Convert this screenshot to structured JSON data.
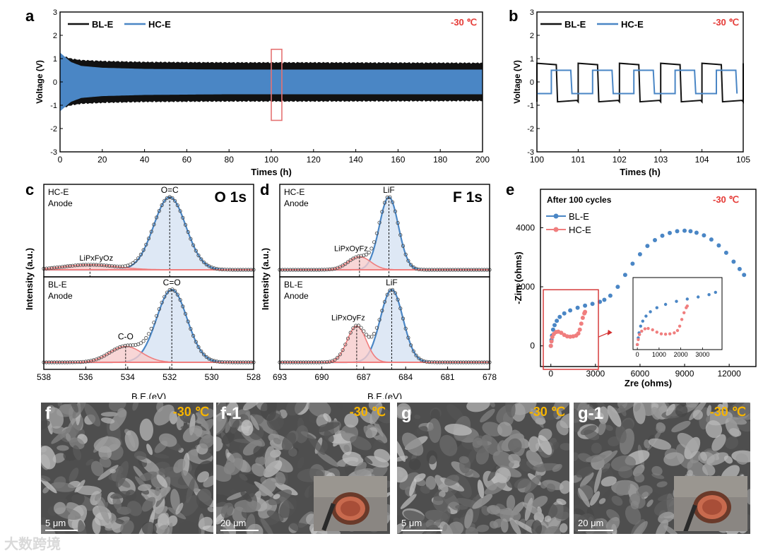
{
  "colors": {
    "bl": "#111111",
    "hc": "#4a86c5",
    "hc_eis": "#f07e7e",
    "temp": "#e53935",
    "sem_temp": "#f6b400",
    "fill_blue": "#d6e2f2",
    "fill_red": "#f6cccc"
  },
  "panels": {
    "a": {
      "label": "a",
      "legend": [
        "BL-E",
        "HC-E"
      ],
      "temp": "-30 ℃",
      "xlabel": "Times (h)",
      "ylabel": "Voltage (V)"
    },
    "b": {
      "label": "b",
      "legend": [
        "BL-E",
        "HC-E"
      ],
      "temp": "-30 ℃",
      "xlabel": "Times (h)",
      "ylabel": "Voltage (V)"
    },
    "c": {
      "label": "c",
      "title": "O 1s",
      "top_sample": "HC-E",
      "bottom_sample": "BL-E",
      "electrode": "Anode",
      "peak_oc": "O=C",
      "peak_co": "C=O",
      "peak_lipfo": "LiPxFyOz",
      "peak_cto": "C-O",
      "xlabel": "B.E.(eV)"
    },
    "d": {
      "label": "d",
      "title": "F 1s",
      "top_sample": "HC-E",
      "bottom_sample": "BL-E",
      "electrode": "Anode",
      "peak_lif": "LiF",
      "peak_lipof": "LiPxOyFz",
      "xlabel": "B.E.(eV)"
    },
    "shared_ylabel": "Intensity (a.u.)",
    "e": {
      "label": "e",
      "note": "After 100 cycles",
      "temp": "-30 ℃",
      "legend": [
        "BL-E",
        "HC-E"
      ],
      "xlabel": "Zre (ohms)",
      "ylabel": "-Zim (ohms)"
    }
  },
  "sem": [
    {
      "label": "f",
      "temp": "-30 ℃",
      "scale": "5 μm",
      "inset": false
    },
    {
      "label": "f-1",
      "temp": "-30 ℃",
      "scale": "20 μm",
      "inset": true
    },
    {
      "label": "g",
      "temp": "-30 ℃",
      "scale": "5 μm",
      "inset": false
    },
    {
      "label": "g-1",
      "temp": "-30 ℃",
      "scale": "20 μm",
      "inset": true
    }
  ],
  "watermark": "大数跨境",
  "chart_data": [
    {
      "panel": "a",
      "type": "line",
      "xlim": [
        0,
        200
      ],
      "ylim": [
        -3,
        3
      ],
      "xticks": [
        0,
        20,
        40,
        60,
        80,
        100,
        120,
        140,
        160,
        180,
        200
      ],
      "yticks": [
        -3,
        -2,
        -1,
        0,
        1,
        2,
        3
      ],
      "series": [
        {
          "name": "BL-E",
          "envelope_x": [
            0,
            5,
            10,
            20,
            40,
            80,
            120,
            160,
            200
          ],
          "upper": [
            1.1,
            0.95,
            0.88,
            0.84,
            0.8,
            0.78,
            0.78,
            0.77,
            0.76
          ],
          "lower": [
            -1.1,
            -0.95,
            -0.88,
            -0.84,
            -0.8,
            -0.78,
            -0.78,
            -0.77,
            -0.76
          ]
        },
        {
          "name": "HC-E",
          "envelope_x": [
            0,
            5,
            10,
            20,
            40,
            80,
            120,
            160,
            200
          ],
          "upper": [
            1.25,
            0.85,
            0.68,
            0.6,
            0.55,
            0.52,
            0.52,
            0.52,
            0.52
          ],
          "lower": [
            -1.25,
            -0.85,
            -0.68,
            -0.6,
            -0.55,
            -0.52,
            -0.52,
            -0.52,
            -0.52
          ]
        }
      ],
      "highlight_window": [
        100,
        105
      ]
    },
    {
      "panel": "b",
      "type": "line",
      "xlim": [
        100,
        105
      ],
      "ylim": [
        -3,
        3
      ],
      "xticks": [
        100,
        101,
        102,
        103,
        104,
        105
      ],
      "yticks": [
        -3,
        -2,
        -1,
        0,
        1,
        2,
        3
      ],
      "period_h": 1,
      "series": [
        {
          "name": "BL-E",
          "high": 0.8,
          "low": -0.85,
          "phase": 0.0
        },
        {
          "name": "HC-E",
          "high": 0.5,
          "low": -0.5,
          "phase": 0.35
        }
      ]
    },
    {
      "panel": "c",
      "type": "line",
      "xlim": [
        538,
        528
      ],
      "xticks": [
        538,
        536,
        534,
        532,
        530,
        528
      ],
      "spectra": [
        {
          "sample": "HC-E",
          "peaks": [
            {
              "name": "O=C",
              "center": 532.0,
              "height": 1.0,
              "fwhm": 1.8
            },
            {
              "name": "LiPxFyOz",
              "center": 535.8,
              "height": 0.07,
              "fwhm": 3.0
            }
          ]
        },
        {
          "sample": "BL-E",
          "peaks": [
            {
              "name": "C=O",
              "center": 531.9,
              "height": 1.0,
              "fwhm": 1.7
            },
            {
              "name": "C-O",
              "center": 534.1,
              "height": 0.22,
              "fwhm": 1.8
            }
          ]
        }
      ]
    },
    {
      "panel": "d",
      "type": "line",
      "xlim": [
        693,
        678
      ],
      "xticks": [
        693,
        690,
        687,
        684,
        681,
        678
      ],
      "spectra": [
        {
          "sample": "HC-E",
          "peaks": [
            {
              "name": "LiF",
              "center": 685.2,
              "height": 1.0,
              "fwhm": 1.6
            },
            {
              "name": "LiPxOyFz",
              "center": 687.3,
              "height": 0.18,
              "fwhm": 1.9
            }
          ]
        },
        {
          "sample": "BL-E",
          "peaks": [
            {
              "name": "LiF",
              "center": 685.0,
              "height": 1.0,
              "fwhm": 1.9
            },
            {
              "name": "LiPxOyFz",
              "center": 687.5,
              "height": 0.5,
              "fwhm": 1.6
            }
          ]
        }
      ]
    },
    {
      "panel": "e",
      "type": "scatter",
      "xlim": [
        -700,
        13800
      ],
      "ylim": [
        -700,
        5300
      ],
      "xticks": [
        0,
        3000,
        6000,
        9000,
        12000
      ],
      "yticks": [
        0,
        2000,
        4000
      ],
      "series": [
        {
          "name": "BL-E",
          "x": [
            0,
            40,
            80,
            150,
            250,
            400,
            600,
            900,
            1300,
            1800,
            2300,
            2800,
            3300,
            3600,
            4000,
            4500,
            5000,
            5500,
            6000,
            6500,
            7000,
            7500,
            8000,
            8500,
            9000,
            9400,
            9800,
            10300,
            10800,
            11300,
            11800,
            12300,
            12700,
            13000
          ],
          "y": [
            0,
            200,
            350,
            550,
            700,
            850,
            980,
            1100,
            1200,
            1290,
            1360,
            1420,
            1490,
            1560,
            1700,
            2000,
            2400,
            2780,
            3100,
            3380,
            3580,
            3730,
            3820,
            3880,
            3900,
            3880,
            3830,
            3740,
            3600,
            3400,
            3150,
            2850,
            2600,
            2400
          ]
        },
        {
          "name": "HC-E",
          "x": [
            0,
            40,
            100,
            200,
            350,
            500,
            700,
            900,
            1100,
            1300,
            1500,
            1700,
            1850,
            1950,
            2050,
            2150,
            2250,
            2300
          ],
          "y": [
            0,
            150,
            300,
            400,
            470,
            480,
            440,
            370,
            320,
            310,
            320,
            350,
            420,
            550,
            750,
            950,
            1100,
            1150
          ]
        }
      ],
      "inset": {
        "xlim": [
          -200,
          3900
        ],
        "ylim": [
          -150,
          2000
        ],
        "xticks": [
          0,
          1000,
          2000,
          3000
        ]
      }
    }
  ]
}
